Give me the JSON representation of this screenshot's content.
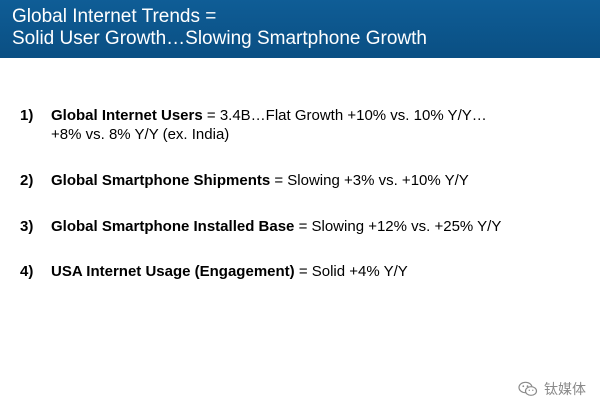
{
  "header": {
    "title_line1": "Global Internet Trends =",
    "title_line2": "Solid User Growth…Slowing Smartphone Growth",
    "background_color": "#0c5690"
  },
  "items": [
    {
      "number": "1)",
      "label": "Global Internet Users",
      "text": " = 3.4B…Flat Growth +10% vs. 10% Y/Y…",
      "continuation": "+8% vs. 8% Y/Y (ex. India)"
    },
    {
      "number": "2)",
      "label": "Global Smartphone Shipments",
      "text": " = Slowing +3% vs. +10% Y/Y"
    },
    {
      "number": "3)",
      "label": "Global Smartphone Installed Base",
      "text": " = Slowing +12% vs. +25% Y/Y"
    },
    {
      "number": "4)",
      "label": "USA Internet Usage (Engagement)",
      "text": " = Solid +4% Y/Y"
    }
  ],
  "watermark": {
    "icon": "wechat-icon",
    "text": "钛媒体"
  }
}
